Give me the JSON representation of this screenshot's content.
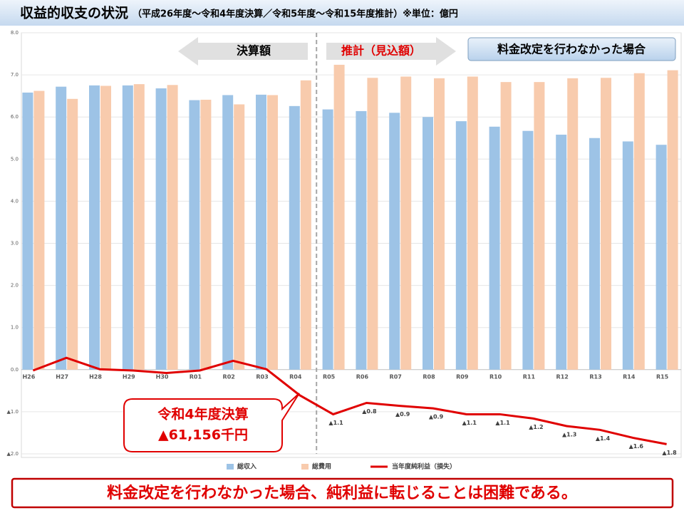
{
  "chart_data": {
    "type": "bar_line",
    "title": "収益的収支の状況",
    "subtitle": "（平成26年度～令和4年度決算／令和5年度～令和15年度推計）※単位：億円",
    "categories": [
      "H26",
      "H27",
      "H28",
      "H29",
      "H30",
      "R01",
      "R02",
      "R03",
      "R04",
      "R05",
      "R06",
      "R07",
      "R08",
      "R09",
      "R10",
      "R11",
      "R12",
      "R13",
      "R14",
      "R15"
    ],
    "series": [
      {
        "name": "総収入",
        "color": "#9dc3e6",
        "kind": "bar",
        "values": [
          6.58,
          6.72,
          6.75,
          6.75,
          6.68,
          6.4,
          6.52,
          6.53,
          6.26,
          6.18,
          6.14,
          6.1,
          6.0,
          5.9,
          5.77,
          5.67,
          5.58,
          5.5,
          5.42,
          5.34
        ]
      },
      {
        "name": "総費用",
        "color": "#f8cbad",
        "kind": "bar",
        "values": [
          6.62,
          6.43,
          6.74,
          6.78,
          6.76,
          6.41,
          6.3,
          6.52,
          6.87,
          7.24,
          6.93,
          6.96,
          6.92,
          6.96,
          6.83,
          6.83,
          6.92,
          6.93,
          7.04,
          7.11
        ]
      },
      {
        "name": "当年度純利益（損失）",
        "color": "#e00000",
        "kind": "line",
        "values": [
          -0.02,
          0.28,
          0.01,
          -0.02,
          -0.08,
          -0.02,
          0.21,
          0.01,
          -0.61,
          -1.06,
          -0.79,
          -0.86,
          -0.92,
          -1.06,
          -1.06,
          -1.16,
          -1.34,
          -1.43,
          -1.62,
          -1.77
        ],
        "value_labels": [
          null,
          null,
          null,
          null,
          null,
          null,
          null,
          null,
          null,
          "▲1.1",
          "▲0.8",
          "▲0.9",
          "▲0.9",
          "▲1.1",
          "▲1.1",
          "▲1.2",
          "▲1.3",
          "▲1.4",
          "▲1.6",
          "▲1.8"
        ]
      }
    ],
    "ylim": [
      -2,
      8
    ],
    "yticks": [
      {
        "value": 8,
        "label": "8.0"
      },
      {
        "value": 7,
        "label": "7.0"
      },
      {
        "value": 6,
        "label": "6.0"
      },
      {
        "value": 5,
        "label": "5.0"
      },
      {
        "value": 4,
        "label": "4.0"
      },
      {
        "value": 3,
        "label": "3.0"
      },
      {
        "value": 2,
        "label": "2.0"
      },
      {
        "value": 1,
        "label": "1.0"
      },
      {
        "value": 0,
        "label": "0.0"
      },
      {
        "value": -1,
        "label": "▲1.0"
      },
      {
        "value": -2,
        "label": "▲2.0"
      }
    ],
    "grid": true,
    "legend": "bottom",
    "annotations": {
      "actual": "決算額",
      "forecast": "推計（見込額）",
      "scenario": "料金改定を行わなかった場合",
      "callout_title": "令和4年度決算",
      "callout_value": "▲61,156千円",
      "conclusion": "料金改定を行わなかった場合、純利益に転じることは困難である。"
    }
  }
}
